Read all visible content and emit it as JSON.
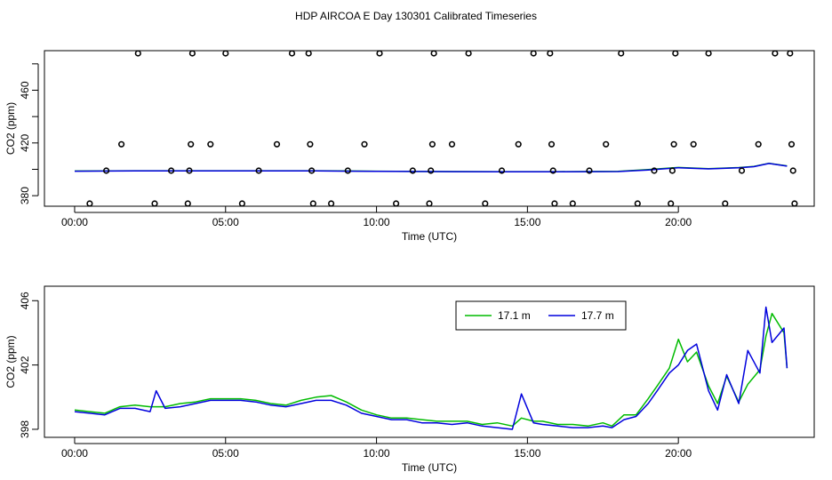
{
  "title": "HDP AIRCOA E  Day 130301  Calibrated Timeseries",
  "chart_data": [
    {
      "type": "scatter",
      "xlabel": "Time (UTC)",
      "ylabel": "CO2 (ppm)",
      "x_unit": "hours UTC",
      "xlim": [
        -1,
        24.5
      ],
      "ylim": [
        372,
        490
      ],
      "x_ticks": [
        0,
        5,
        10,
        15,
        20
      ],
      "x_tick_labels": [
        "00:00",
        "05:00",
        "10:00",
        "15:00",
        "20:00"
      ],
      "y_ticks": [
        380,
        420,
        460
      ],
      "y_tick_labels": [
        "380",
        "420",
        "460"
      ],
      "grid": false,
      "calibration_points": {
        "x": [
          0.5,
          1.05,
          1.55,
          2.1,
          2.65,
          3.2,
          3.75,
          3.8,
          3.85,
          3.9,
          4.5,
          5.0,
          5.55,
          6.1,
          6.7,
          7.2,
          7.75,
          7.8,
          7.85,
          7.9,
          8.5,
          9.05,
          9.6,
          10.1,
          10.65,
          11.2,
          11.75,
          11.8,
          11.85,
          11.9,
          12.5,
          13.05,
          13.6,
          14.15,
          14.7,
          15.2,
          15.75,
          15.8,
          15.85,
          15.9,
          16.5,
          17.05,
          17.6,
          18.1,
          18.65,
          19.2,
          19.75,
          19.8,
          19.85,
          19.9,
          20.5,
          21.0,
          21.55,
          22.1,
          22.65,
          23.2,
          23.7,
          23.75,
          23.8,
          23.85
        ],
        "y": [
          374,
          399,
          419,
          488,
          374,
          399,
          374,
          399,
          419,
          488,
          419,
          488,
          374,
          399,
          419,
          488,
          488,
          419,
          399,
          374,
          374,
          399,
          419,
          488,
          374,
          399,
          374,
          399,
          419,
          488,
          419,
          488,
          374,
          399,
          419,
          488,
          488,
          419,
          399,
          374,
          374,
          399,
          419,
          488,
          374,
          399,
          374,
          399,
          419,
          488,
          419,
          488,
          374,
          399,
          419,
          488,
          488,
          419,
          399,
          374
        ]
      },
      "series": [
        {
          "color": "#00aa00",
          "x": [
            0,
            2,
            4,
            6,
            8,
            10,
            12,
            14,
            16,
            18,
            19,
            20,
            21,
            22,
            22.5,
            23,
            23.6
          ],
          "y": [
            398.7,
            398.9,
            398.9,
            398.9,
            398.9,
            398.6,
            398.3,
            398.2,
            398.2,
            398.4,
            399.8,
            401.4,
            400.5,
            401.3,
            402.2,
            404.6,
            402.6
          ]
        },
        {
          "color": "#0000dd",
          "x": [
            0,
            2,
            4,
            6,
            8,
            10,
            12,
            14,
            16,
            18,
            19,
            20,
            21,
            22,
            22.5,
            23,
            23.6
          ],
          "y": [
            398.6,
            398.8,
            398.8,
            398.8,
            398.8,
            398.5,
            398.3,
            398.1,
            398.1,
            398.3,
            399.5,
            401.2,
            400.3,
            401.1,
            402.0,
            404.4,
            402.4
          ]
        }
      ]
    },
    {
      "type": "line",
      "xlabel": "Time (UTC)",
      "ylabel": "CO2 (ppm)",
      "x_unit": "hours UTC",
      "xlim": [
        -1,
        24.5
      ],
      "ylim": [
        397.5,
        406.9
      ],
      "x_ticks": [
        0,
        5,
        10,
        15,
        20
      ],
      "x_tick_labels": [
        "00:00",
        "05:00",
        "10:00",
        "15:00",
        "20:00"
      ],
      "y_ticks": [
        398,
        402,
        406
      ],
      "y_tick_labels": [
        "398",
        "402",
        "406"
      ],
      "grid": false,
      "legend": "top-center",
      "series": [
        {
          "name": "17.1 m",
          "color": "#00bb00",
          "x": [
            0,
            0.5,
            1,
            1.5,
            2,
            2.5,
            3,
            3.5,
            4,
            4.5,
            5,
            5.5,
            6,
            6.5,
            7,
            7.5,
            8,
            8.5,
            9,
            9.5,
            10,
            10.5,
            11,
            11.5,
            12,
            12.5,
            13,
            13.5,
            14,
            14.5,
            14.8,
            15.2,
            15.5,
            16,
            16.5,
            17,
            17.5,
            17.8,
            18.2,
            18.6,
            19,
            19.3,
            19.7,
            20,
            20.3,
            20.6,
            21,
            21.3,
            21.6,
            22,
            22.3,
            22.7,
            22.9,
            23.1,
            23.5,
            23.6
          ],
          "y": [
            399.2,
            399.1,
            399.0,
            399.4,
            399.5,
            399.4,
            399.4,
            399.6,
            399.7,
            399.9,
            399.9,
            399.9,
            399.8,
            399.6,
            399.5,
            399.8,
            400.0,
            400.1,
            399.7,
            399.2,
            398.9,
            398.7,
            398.7,
            398.6,
            398.5,
            398.5,
            398.5,
            398.3,
            398.4,
            398.2,
            398.7,
            398.5,
            398.5,
            398.3,
            398.3,
            398.2,
            398.4,
            398.2,
            398.9,
            398.9,
            399.9,
            400.7,
            401.8,
            403.6,
            402.2,
            402.8,
            400.7,
            399.6,
            401.3,
            399.7,
            400.8,
            401.7,
            403.8,
            405.2,
            404.0,
            401.8
          ]
        },
        {
          "name": "17.7 m",
          "color": "#0000dd",
          "x": [
            0,
            0.5,
            1,
            1.5,
            2,
            2.5,
            2.7,
            3,
            3.5,
            4,
            4.5,
            5,
            5.5,
            6,
            6.5,
            7,
            7.5,
            8,
            8.5,
            9,
            9.5,
            10,
            10.5,
            11,
            11.5,
            12,
            12.5,
            13,
            13.5,
            14,
            14.5,
            14.8,
            15.2,
            15.5,
            16,
            16.5,
            17,
            17.5,
            17.8,
            18.2,
            18.6,
            19,
            19.3,
            19.7,
            20,
            20.3,
            20.6,
            21,
            21.3,
            21.6,
            22,
            22.3,
            22.7,
            22.9,
            23.1,
            23.5,
            23.6
          ],
          "y": [
            399.1,
            399.0,
            398.9,
            399.3,
            399.3,
            399.1,
            400.4,
            399.3,
            399.4,
            399.6,
            399.8,
            399.8,
            399.8,
            399.7,
            399.5,
            399.4,
            399.6,
            399.8,
            399.8,
            399.5,
            399.0,
            398.8,
            398.6,
            398.6,
            398.4,
            398.4,
            398.3,
            398.4,
            398.2,
            398.1,
            398.0,
            400.2,
            398.4,
            398.3,
            398.2,
            398.1,
            398.1,
            398.2,
            398.1,
            398.6,
            398.8,
            399.6,
            400.4,
            401.5,
            402.0,
            402.9,
            403.3,
            400.4,
            399.2,
            401.4,
            399.6,
            402.9,
            401.5,
            405.6,
            403.4,
            404.3,
            401.8
          ]
        }
      ]
    }
  ]
}
